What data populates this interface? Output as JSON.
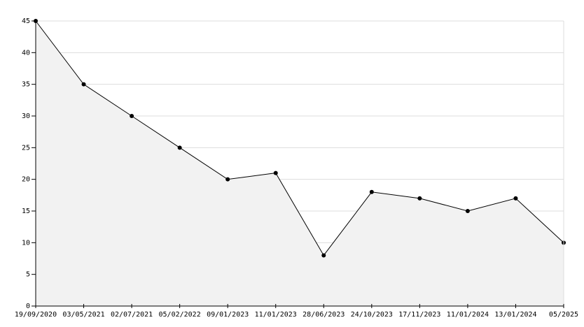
{
  "chart_data": {
    "type": "area",
    "categories": [
      "19/09/2020",
      "03/05/2021",
      "02/07/2021",
      "05/02/2022",
      "09/01/2023",
      "11/01/2023",
      "28/06/2023",
      "24/10/2023",
      "17/11/2023",
      "11/01/2024",
      "13/01/2024",
      "05/2025"
    ],
    "values": [
      45,
      35,
      30,
      25,
      20,
      21,
      8,
      18,
      17,
      15,
      17,
      10
    ],
    "color": "#000000",
    "fill": "#f2f2f2",
    "ylim": [
      0,
      45
    ],
    "yticks": [
      0,
      5,
      10,
      15,
      20,
      25,
      30,
      35,
      40,
      45
    ],
    "grid": true
  }
}
